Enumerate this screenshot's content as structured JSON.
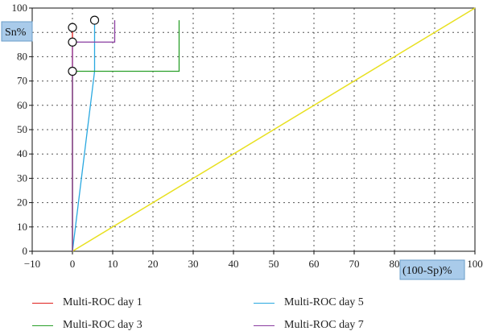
{
  "chart_data": {
    "type": "line",
    "xlabel": "(100-Sp)%",
    "ylabel": "Sn%",
    "xlim": [
      -10,
      100
    ],
    "ylim": [
      0,
      100
    ],
    "x_ticks": [
      "−10",
      "0",
      "10",
      "20",
      "30",
      "40",
      "50",
      "60",
      "70",
      "80",
      "90",
      "100"
    ],
    "y_ticks": [
      "0",
      "10",
      "20",
      "30",
      "40",
      "50",
      "60",
      "70",
      "80",
      "90",
      "100"
    ],
    "grid": true,
    "legend_position": "bottom",
    "reference_line": {
      "x": [
        0,
        100
      ],
      "y": [
        0,
        100
      ],
      "color": "#e8e020"
    },
    "series": [
      {
        "name": "Multi-ROC day 1",
        "color": "#e0201c",
        "x": [
          0,
          0,
          0
        ],
        "y": [
          0,
          92,
          92
        ],
        "optimal_point": [
          0,
          92
        ]
      },
      {
        "name": "Multi-ROC day 5",
        "color": "#29a8e0",
        "x": [
          0,
          5.5,
          5.5,
          5.5
        ],
        "y": [
          0,
          74,
          74,
          95
        ],
        "optimal_point": [
          5.5,
          95
        ]
      },
      {
        "name": "Multi-ROC day 3",
        "color": "#2aa02a",
        "x": [
          0,
          0,
          26.5,
          26.5
        ],
        "y": [
          0,
          74,
          74,
          95
        ],
        "optimal_point": [
          0,
          74
        ]
      },
      {
        "name": "Multi-ROC day 7",
        "color": "#8a3ca0",
        "x": [
          0,
          0,
          10.5,
          10.5
        ],
        "y": [
          0,
          86,
          86,
          95
        ],
        "optimal_point": [
          0,
          86
        ]
      }
    ]
  }
}
